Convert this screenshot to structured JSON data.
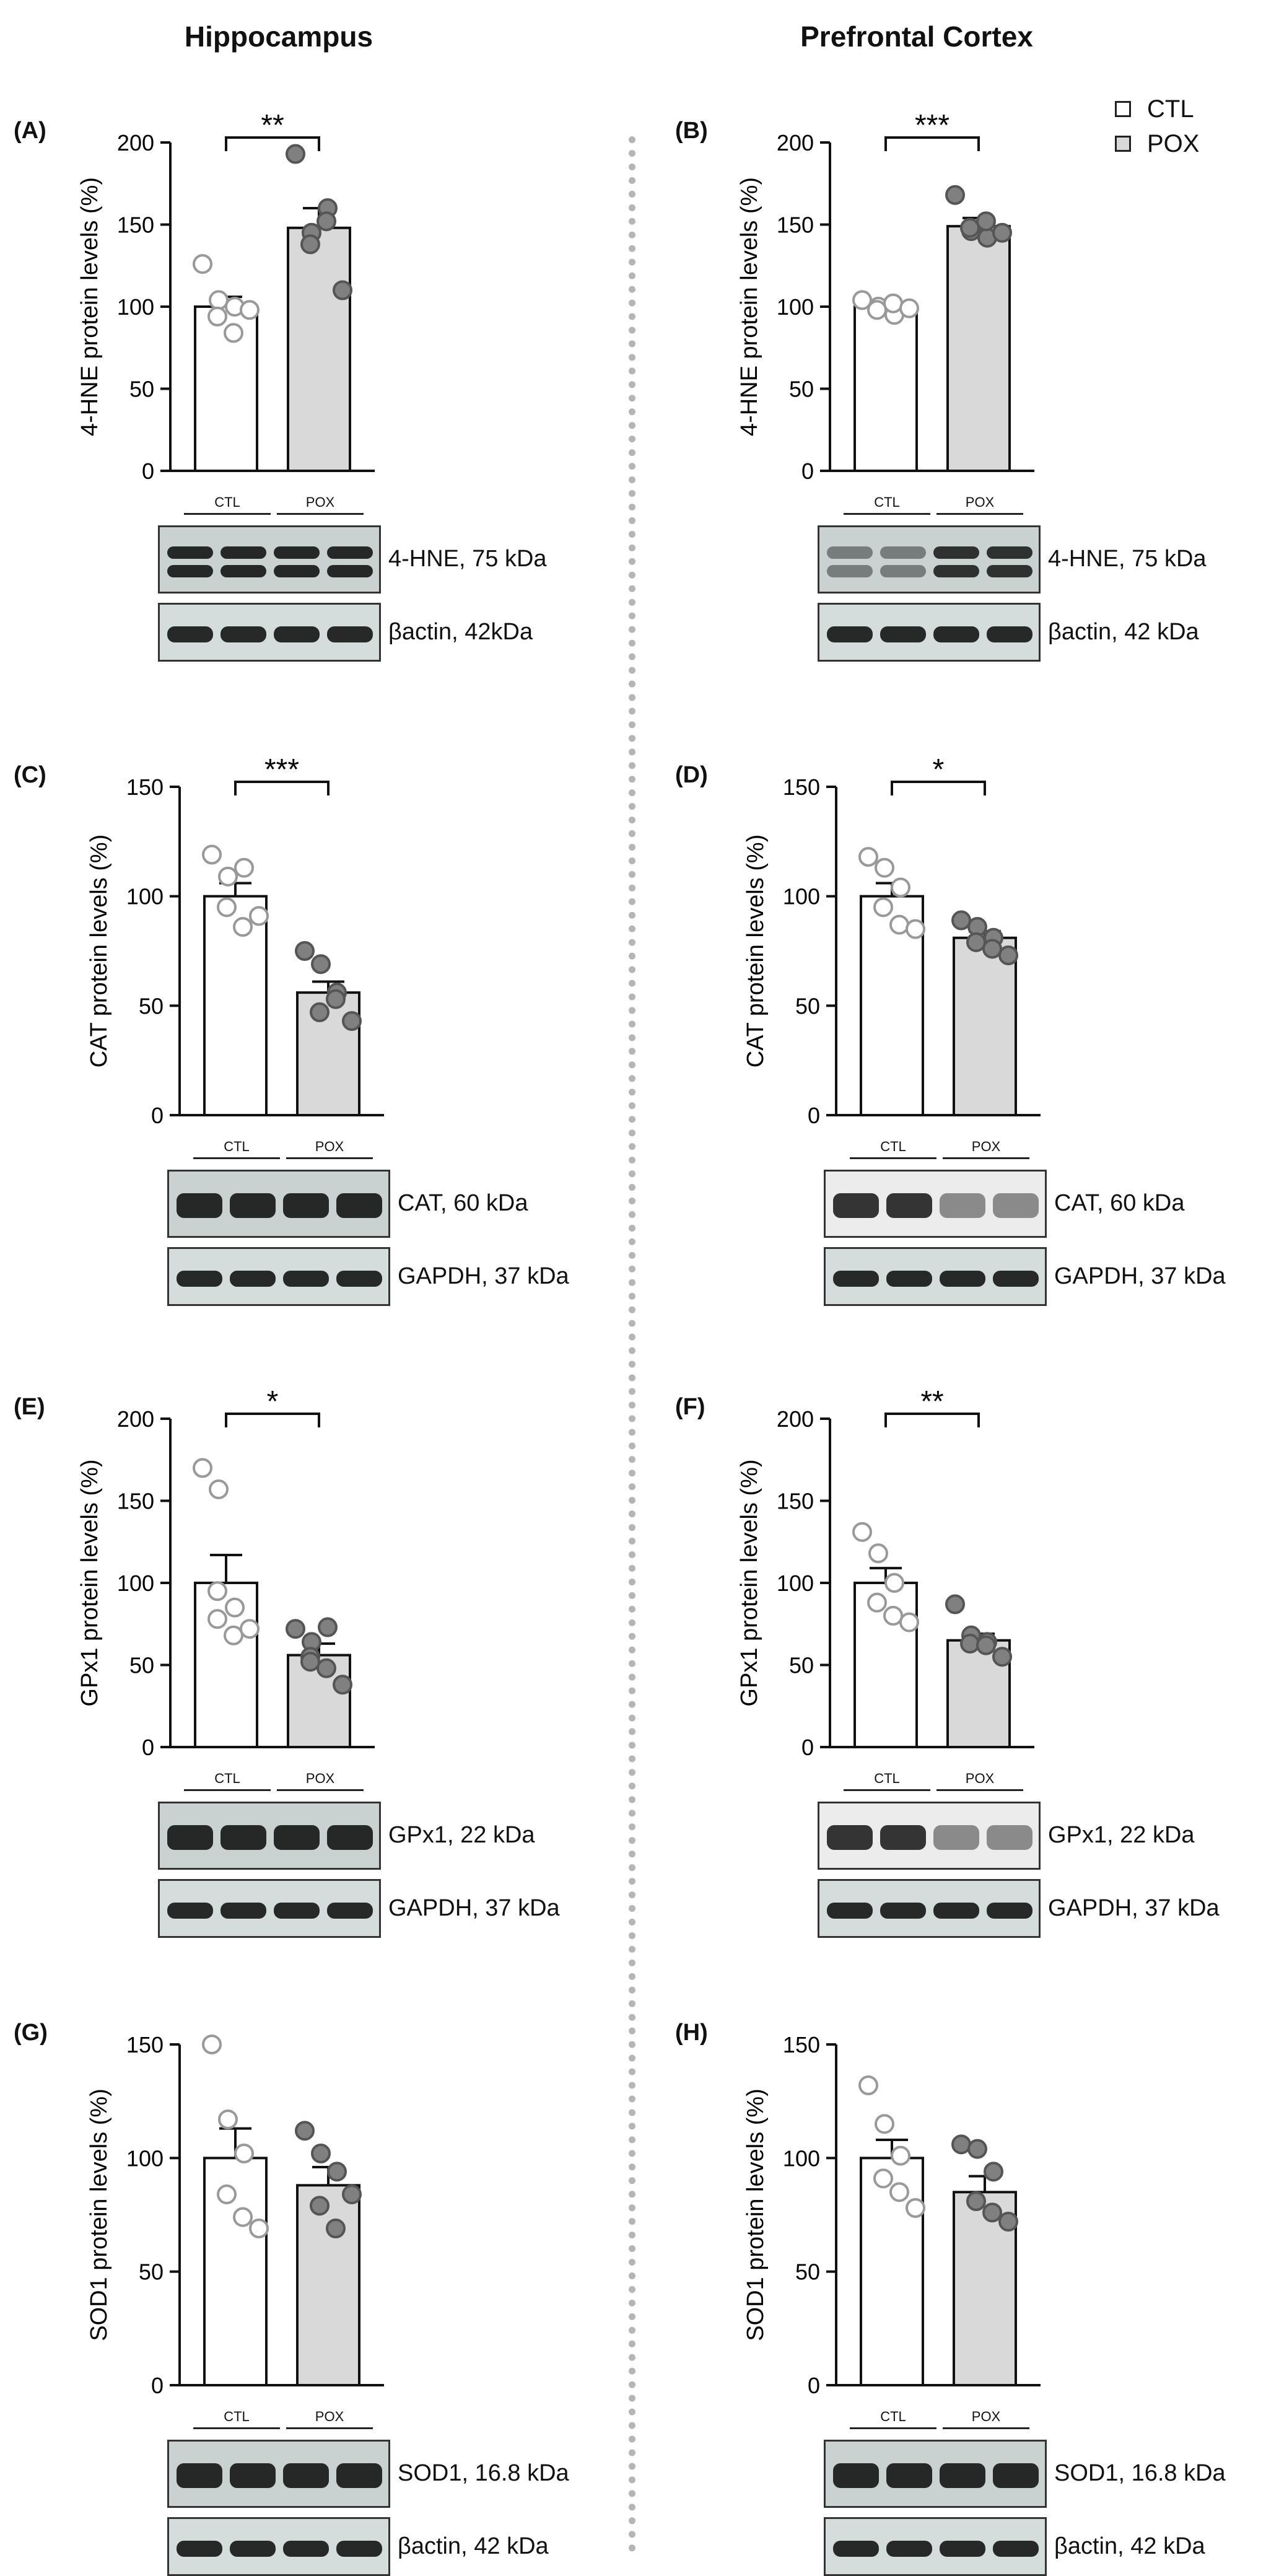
{
  "columns": {
    "left_title": "Hippocampus",
    "right_title": "Prefrontal Cortex"
  },
  "legend": [
    {
      "label": "CTL",
      "color": "#ffffff"
    },
    {
      "label": "POX",
      "color": "#d9d9d9"
    }
  ],
  "lane_labels": {
    "ctl": "CTL",
    "pox": "POX"
  },
  "colors": {
    "ctl_bar": "#ffffff",
    "pox_bar": "#d9d9d9",
    "ctl_point": "#ffffff",
    "pox_point": "#808080"
  },
  "chart_data": [
    {
      "id": "A",
      "letter": "(A)",
      "type": "bar",
      "ylabel": "4-HNE protein levels (%)",
      "ylim": [
        0,
        200
      ],
      "yticks": [
        "0",
        "50",
        "100",
        "150",
        "200"
      ],
      "categories": [
        "CTL",
        "POX"
      ],
      "values": [
        100,
        148
      ],
      "sem": [
        6,
        12
      ],
      "significance": "**",
      "points": [
        [
          126,
          104,
          100,
          94,
          84,
          98
        ],
        [
          193,
          145,
          160,
          138,
          152,
          110
        ]
      ],
      "blots": [
        {
          "label": "4-HNE, 75 kDa",
          "style": "hne"
        },
        {
          "label": "βactin, 42kDa",
          "style": "thin"
        }
      ]
    },
    {
      "id": "B",
      "letter": "(B)",
      "type": "bar",
      "ylabel": "4-HNE protein levels (%)",
      "ylim": [
        0,
        200
      ],
      "yticks": [
        "0",
        "50",
        "100",
        "150",
        "200"
      ],
      "categories": [
        "CTL",
        "POX"
      ],
      "values": [
        100,
        149
      ],
      "sem": [
        4,
        5
      ],
      "significance": "***",
      "points": [
        [
          104,
          100,
          95,
          98,
          102,
          99
        ],
        [
          168,
          146,
          142,
          148,
          152,
          145
        ]
      ],
      "blots": [
        {
          "label": "4-HNE, 75 kDa",
          "style": "hne2"
        },
        {
          "label": "βactin, 42 kDa",
          "style": "thin"
        }
      ]
    },
    {
      "id": "C",
      "letter": "(C)",
      "type": "bar",
      "ylabel": "CAT protein levels (%)",
      "ylim": [
        0,
        150
      ],
      "yticks": [
        "0",
        "50",
        "100",
        "150"
      ],
      "categories": [
        "CTL",
        "POX"
      ],
      "values": [
        100,
        56
      ],
      "sem": [
        6,
        5
      ],
      "significance": "***",
      "points": [
        [
          119,
          109,
          113,
          95,
          86,
          91
        ],
        [
          75,
          69,
          56,
          47,
          53,
          43
        ]
      ],
      "blots": [
        {
          "label": "CAT, 60 kDa",
          "style": "thick"
        },
        {
          "label": "GAPDH, 37 kDa",
          "style": "thin"
        }
      ]
    },
    {
      "id": "D",
      "letter": "(D)",
      "type": "bar",
      "ylabel": "CAT protein levels (%)",
      "ylim": [
        0,
        150
      ],
      "yticks": [
        "0",
        "50",
        "100",
        "150"
      ],
      "categories": [
        "CTL",
        "POX"
      ],
      "values": [
        100,
        81
      ],
      "sem": [
        6,
        3
      ],
      "significance": "*",
      "points": [
        [
          118,
          113,
          104,
          95,
          87,
          85
        ],
        [
          89,
          86,
          81,
          79,
          76,
          73
        ]
      ],
      "blots": [
        {
          "label": "CAT, 60 kDa",
          "style": "fade"
        },
        {
          "label": "GAPDH, 37 kDa",
          "style": "thin"
        }
      ]
    },
    {
      "id": "E",
      "letter": "(E)",
      "type": "bar",
      "ylabel": "GPx1 protein levels (%)",
      "ylim": [
        0,
        200
      ],
      "yticks": [
        "0",
        "50",
        "100",
        "150",
        "200"
      ],
      "categories": [
        "CTL",
        "POX"
      ],
      "values": [
        100,
        56
      ],
      "sem": [
        17,
        7
      ],
      "significance": "*",
      "points": [
        [
          170,
          157,
          85,
          95,
          68,
          72,
          78
        ],
        [
          72,
          64,
          73,
          55,
          48,
          38,
          52
        ]
      ],
      "blots": [
        {
          "label": "GPx1, 22 kDa",
          "style": "thick"
        },
        {
          "label": "GAPDH, 37 kDa",
          "style": "thin"
        }
      ]
    },
    {
      "id": "F",
      "letter": "(F)",
      "type": "bar",
      "ylabel": "GPx1 protein levels (%)",
      "ylim": [
        0,
        200
      ],
      "yticks": [
        "0",
        "50",
        "100",
        "150",
        "200"
      ],
      "categories": [
        "CTL",
        "POX"
      ],
      "values": [
        100,
        65
      ],
      "sem": [
        9,
        4
      ],
      "significance": "**",
      "points": [
        [
          131,
          118,
          100,
          88,
          80,
          76
        ],
        [
          87,
          68,
          64,
          63,
          62,
          55
        ]
      ],
      "blots": [
        {
          "label": "GPx1, 22 kDa",
          "style": "fade"
        },
        {
          "label": "GAPDH, 37 kDa",
          "style": "thin"
        }
      ]
    },
    {
      "id": "G",
      "letter": "(G)",
      "type": "bar",
      "ylabel": "SOD1 protein levels (%)",
      "ylim": [
        0,
        150
      ],
      "yticks": [
        "0",
        "50",
        "100",
        "150"
      ],
      "categories": [
        "CTL",
        "POX"
      ],
      "values": [
        100,
        88
      ],
      "sem": [
        13,
        8
      ],
      "significance": "",
      "points": [
        [
          150,
          117,
          102,
          84,
          74,
          69
        ],
        [
          112,
          102,
          94,
          79,
          69,
          84
        ]
      ],
      "blots": [
        {
          "label": "SOD1, 16.8 kDa",
          "style": "thick"
        },
        {
          "label": "βactin, 42 kDa",
          "style": "thin"
        }
      ]
    },
    {
      "id": "H",
      "letter": "(H)",
      "type": "bar",
      "ylabel": "SOD1 protein levels (%)",
      "ylim": [
        0,
        150
      ],
      "yticks": [
        "0",
        "50",
        "100",
        "150"
      ],
      "categories": [
        "CTL",
        "POX"
      ],
      "values": [
        100,
        85
      ],
      "sem": [
        8,
        7
      ],
      "significance": "",
      "points": [
        [
          132,
          115,
          101,
          91,
          85,
          78
        ],
        [
          106,
          104,
          94,
          81,
          76,
          72
        ]
      ],
      "blots": [
        {
          "label": "SOD1, 16.8 kDa",
          "style": "thick"
        },
        {
          "label": "βactin, 42 kDa",
          "style": "thin"
        }
      ]
    }
  ]
}
